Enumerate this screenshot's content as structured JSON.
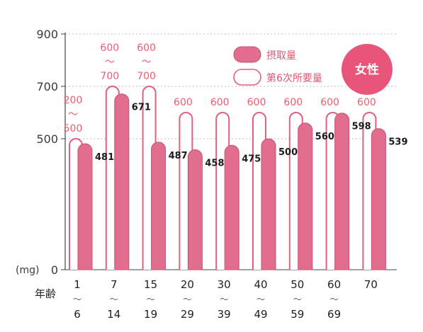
{
  "chart_data": {
    "type": "bar",
    "unit_label": "(mg)",
    "y_ticks": [
      "0",
      "500",
      "700",
      "900"
    ],
    "ylim": [
      0,
      900
    ],
    "x_title": "年齢",
    "badge": "女性",
    "legend": "top-right",
    "age_groups": [
      {
        "from": "1",
        "sep": "〜",
        "to": "6"
      },
      {
        "from": "7",
        "sep": "〜",
        "to": "14"
      },
      {
        "from": "15",
        "sep": "〜",
        "to": "19"
      },
      {
        "from": "20",
        "sep": "〜",
        "to": "29"
      },
      {
        "from": "30",
        "sep": "〜",
        "to": "39"
      },
      {
        "from": "40",
        "sep": "〜",
        "to": "49"
      },
      {
        "from": "50",
        "sep": "〜",
        "to": "59"
      },
      {
        "from": "60",
        "sep": "〜",
        "to": "69"
      },
      {
        "from": "70"
      }
    ],
    "series": [
      {
        "name": "摂取量",
        "values": [
          481,
          671,
          487,
          458,
          475,
          500,
          560,
          598,
          539
        ],
        "labels": [
          "481",
          "671",
          "487",
          "458",
          "475",
          "500",
          "560",
          "598",
          "539"
        ]
      },
      {
        "name": "第6次所要量",
        "values": [
          500,
          700,
          700,
          600,
          600,
          600,
          600,
          600,
          600
        ],
        "labels": [
          [
            "200",
            "〜",
            "500"
          ],
          [
            "600",
            "〜",
            "700"
          ],
          [
            "600",
            "〜",
            "700"
          ],
          [
            "600"
          ],
          [
            "600"
          ],
          [
            "600"
          ],
          [
            "600"
          ],
          [
            "600"
          ],
          [
            "600"
          ]
        ]
      }
    ],
    "colors": {
      "intake": "#e26d8e",
      "requirement_outline": "#e0607e",
      "badge": "#e8557a",
      "grid": "#bdbdbd"
    }
  }
}
